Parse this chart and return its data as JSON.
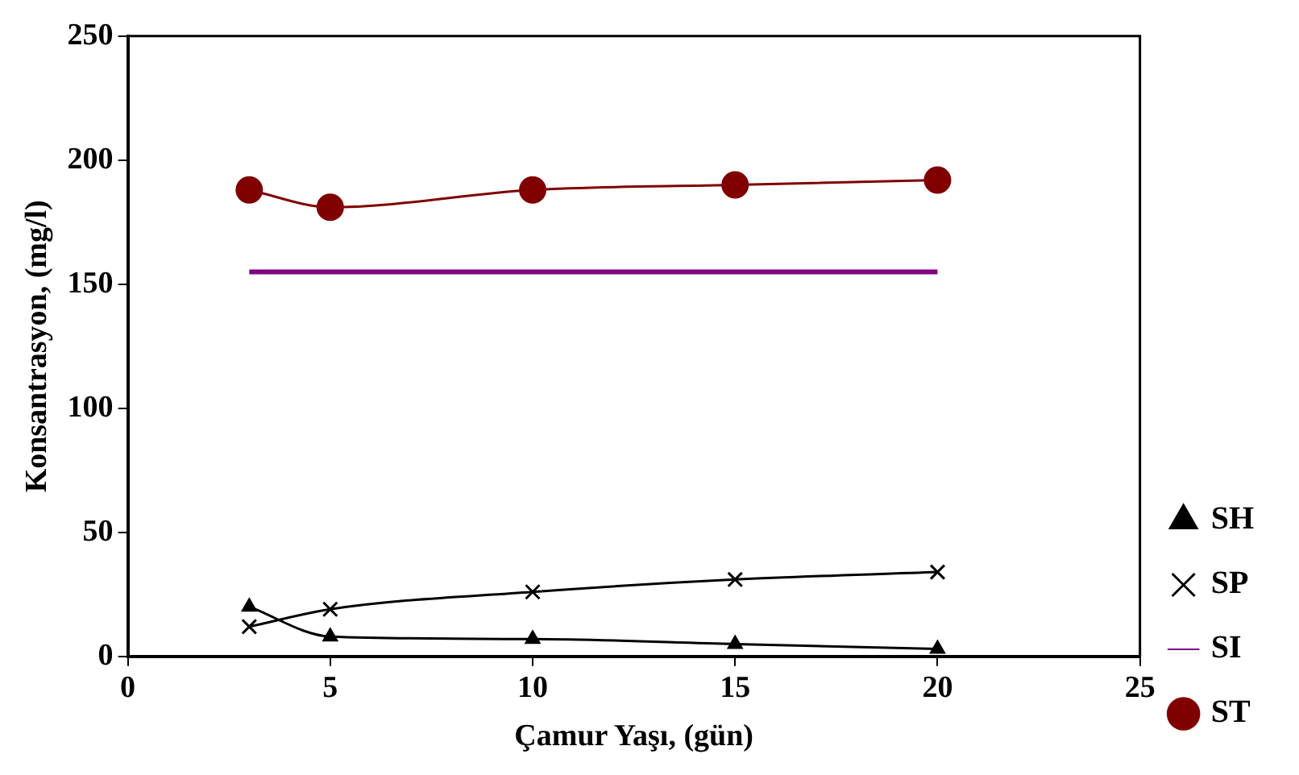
{
  "chart_data": {
    "type": "line",
    "xlabel": "Çamur Yaşı, (gün)",
    "ylabel": "Konsantrasyon, (mg/l)",
    "x": [
      3,
      5,
      10,
      15,
      20
    ],
    "series": [
      {
        "name": "SH",
        "color": "#000000",
        "marker": "triangle",
        "values": [
          20,
          8,
          7,
          5,
          3
        ]
      },
      {
        "name": "SP",
        "color": "#000000",
        "marker": "cross",
        "values": [
          12,
          19,
          26,
          31,
          34
        ]
      },
      {
        "name": "SI",
        "color": "#800080",
        "marker": "none",
        "values": [
          155,
          155,
          155,
          155,
          155
        ]
      },
      {
        "name": "ST",
        "color": "#800000",
        "marker": "circle",
        "values": [
          188,
          181,
          188,
          190,
          192
        ]
      }
    ],
    "xlim": [
      0,
      25
    ],
    "xticks": [
      0,
      5,
      10,
      15,
      20,
      25
    ],
    "ylim": [
      0,
      250
    ],
    "yticks": [
      0,
      50,
      100,
      150,
      200,
      250
    ],
    "grid": false,
    "legend": "right"
  }
}
